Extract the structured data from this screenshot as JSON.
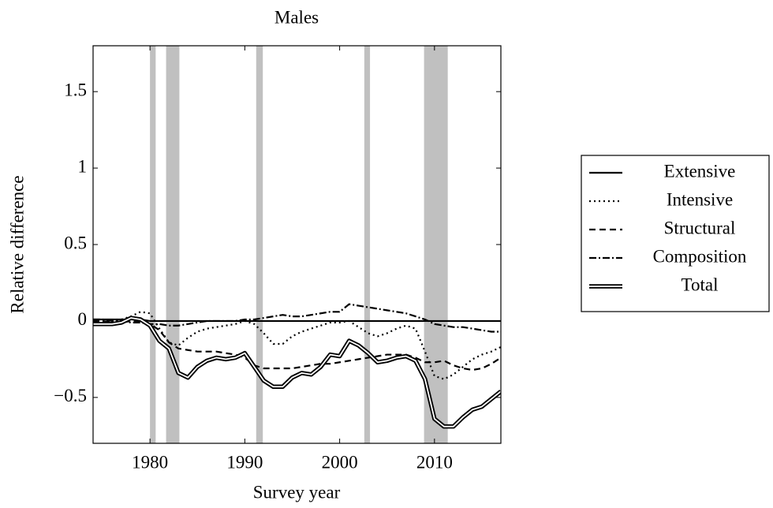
{
  "chart_data": {
    "type": "line",
    "title": "Males",
    "x_label": "Survey year",
    "y_label": "Relative difference",
    "x": [
      1974,
      1975,
      1976,
      1977,
      1978,
      1979,
      1980,
      1981,
      1982,
      1983,
      1984,
      1985,
      1986,
      1987,
      1988,
      1989,
      1990,
      1991,
      1992,
      1993,
      1994,
      1995,
      1996,
      1997,
      1998,
      1999,
      2000,
      2001,
      2002,
      2003,
      2004,
      2005,
      2006,
      2007,
      2008,
      2009,
      2010,
      2011,
      2012,
      2013,
      2014,
      2015,
      2016,
      2017
    ],
    "series": [
      {
        "name": "Extensive",
        "color": "#000000",
        "style": "solid",
        "values": [
          0.01,
          0.01,
          0.01,
          0.01,
          0.01,
          0.01,
          0,
          0,
          0,
          0,
          0,
          0,
          0,
          0,
          0,
          0,
          0,
          0,
          0,
          0,
          0,
          0,
          0,
          0,
          0,
          0,
          0,
          0,
          0,
          0,
          0,
          0,
          0,
          0,
          0,
          0,
          0,
          0,
          0,
          0,
          0,
          0,
          0,
          0
        ]
      },
      {
        "name": "Intensive",
        "color": "#000000",
        "style": "dotted",
        "values": [
          0,
          0,
          0,
          0.01,
          0.03,
          0.06,
          0.05,
          -0.05,
          -0.14,
          -0.16,
          -0.11,
          -0.07,
          -0.05,
          -0.04,
          -0.03,
          -0.02,
          0,
          -0.02,
          -0.08,
          -0.15,
          -0.15,
          -0.1,
          -0.07,
          -0.05,
          -0.03,
          -0.01,
          -0.01,
          0,
          -0.04,
          -0.08,
          -0.1,
          -0.08,
          -0.05,
          -0.03,
          -0.05,
          -0.2,
          -0.36,
          -0.38,
          -0.35,
          -0.3,
          -0.25,
          -0.22,
          -0.2,
          -0.17
        ]
      },
      {
        "name": "Structural",
        "color": "#000000",
        "style": "dashed",
        "values": [
          0,
          0,
          -0.01,
          -0.01,
          0,
          0,
          -0.02,
          -0.06,
          -0.14,
          -0.18,
          -0.19,
          -0.2,
          -0.2,
          -0.2,
          -0.21,
          -0.22,
          -0.24,
          -0.29,
          -0.31,
          -0.31,
          -0.31,
          -0.31,
          -0.3,
          -0.29,
          -0.28,
          -0.28,
          -0.27,
          -0.26,
          -0.25,
          -0.24,
          -0.23,
          -0.22,
          -0.22,
          -0.22,
          -0.24,
          -0.27,
          -0.27,
          -0.26,
          -0.29,
          -0.31,
          -0.32,
          -0.31,
          -0.28,
          -0.24
        ]
      },
      {
        "name": "Composition",
        "color": "#000000",
        "style": "dashdot",
        "values": [
          0.01,
          0.01,
          0,
          0,
          -0.01,
          -0.01,
          -0.02,
          -0.02,
          -0.03,
          -0.03,
          -0.02,
          -0.01,
          0,
          0,
          0,
          0,
          0.01,
          0.01,
          0.02,
          0.03,
          0.04,
          0.03,
          0.03,
          0.04,
          0.05,
          0.06,
          0.06,
          0.11,
          0.1,
          0.09,
          0.08,
          0.07,
          0.06,
          0.05,
          0.03,
          0.01,
          -0.02,
          -0.03,
          -0.04,
          -0.04,
          -0.05,
          -0.06,
          -0.07,
          -0.07
        ]
      },
      {
        "name": "Total",
        "color": "#000000",
        "style": "double",
        "values": [
          -0.02,
          -0.02,
          -0.02,
          -0.01,
          0.02,
          0.01,
          -0.03,
          -0.13,
          -0.18,
          -0.34,
          -0.37,
          -0.3,
          -0.26,
          -0.24,
          -0.25,
          -0.24,
          -0.21,
          -0.3,
          -0.39,
          -0.43,
          -0.43,
          -0.37,
          -0.34,
          -0.35,
          -0.3,
          -0.22,
          -0.23,
          -0.13,
          -0.16,
          -0.21,
          -0.27,
          -0.26,
          -0.24,
          -0.23,
          -0.26,
          -0.38,
          -0.64,
          -0.69,
          -0.69,
          -0.63,
          -0.58,
          -0.56,
          -0.51,
          -0.46
        ]
      }
    ],
    "shaded_regions": [
      [
        1980.0,
        1980.6
      ],
      [
        1981.7,
        1983.1
      ],
      [
        1991.2,
        1991.9
      ],
      [
        2002.6,
        2003.2
      ],
      [
        2008.9,
        2011.4
      ]
    ],
    "shade_color": "#c0c0c0",
    "xlim": [
      1974,
      2017
    ],
    "xticks": [
      1980,
      1990,
      2000,
      2010
    ],
    "ylim": [
      -0.8,
      1.8
    ],
    "yticks": [
      {
        "value": -0.5,
        "label": "−0.5"
      },
      0,
      0.5,
      1,
      1.5
    ],
    "grid": false,
    "legend": "right"
  }
}
